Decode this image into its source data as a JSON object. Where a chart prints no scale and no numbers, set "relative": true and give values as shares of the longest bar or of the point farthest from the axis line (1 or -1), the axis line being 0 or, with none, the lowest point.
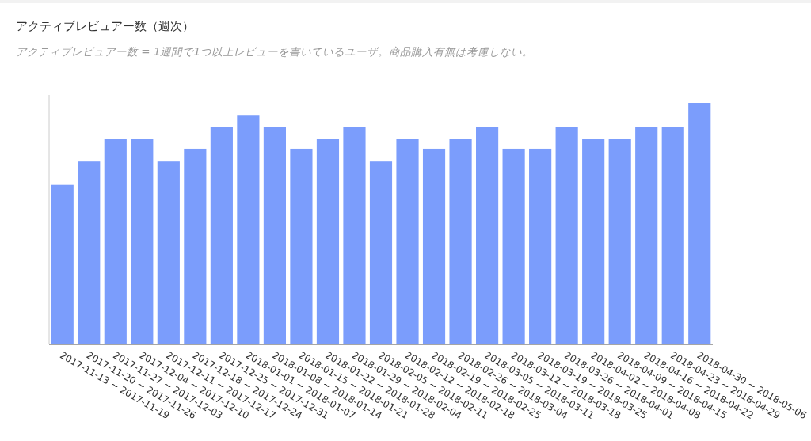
{
  "chart_data": {
    "type": "bar",
    "title": "アクティブレビュアー数（週次）",
    "subtitle": "アクティブレビュアー数 = 1週間で1つ以上レビューを書いているユーザ。商品購入有無は考慮しない。",
    "categories": [
      "2017-11-13 ~ 2017-11-19",
      "2017-11-20 ~ 2017-11-26",
      "2017-11-27 ~ 2017-12-03",
      "2017-12-04 ~ 2017-12-10",
      "2017-12-11 ~ 2017-12-17",
      "2017-12-18 ~ 2017-12-24",
      "2017-12-25 ~ 2017-12-31",
      "2018-01-01 ~ 2018-01-07",
      "2018-01-08 ~ 2018-01-14",
      "2018-01-15 ~ 2018-01-21",
      "2018-01-22 ~ 2018-01-28",
      "2018-01-29 ~ 2018-02-04",
      "2018-02-05 ~ 2018-02-11",
      "2018-02-12 ~ 2018-02-18",
      "2018-02-19 ~ 2018-02-25",
      "2018-02-26 ~ 2018-03-04",
      "2018-03-05 ~ 2018-03-11",
      "2018-03-12 ~ 2018-03-18",
      "2018-03-19 ~ 2018-03-25",
      "2018-03-26 ~ 2018-04-01",
      "2018-04-02 ~ 2018-04-08",
      "2018-04-09 ~ 2018-04-15",
      "2018-04-16 ~ 2018-04-22",
      "2018-04-23 ~ 2018-04-29",
      "2018-04-30 ~ 2018-05-06"
    ],
    "values": [
      0.66,
      0.76,
      0.85,
      0.85,
      0.76,
      0.81,
      0.9,
      0.95,
      0.9,
      0.81,
      0.85,
      0.9,
      0.76,
      0.85,
      0.81,
      0.85,
      0.9,
      0.81,
      0.81,
      0.9,
      0.85,
      0.85,
      0.9,
      0.9,
      1
    ],
    "color": "#7b9dfc",
    "relative": true
  }
}
